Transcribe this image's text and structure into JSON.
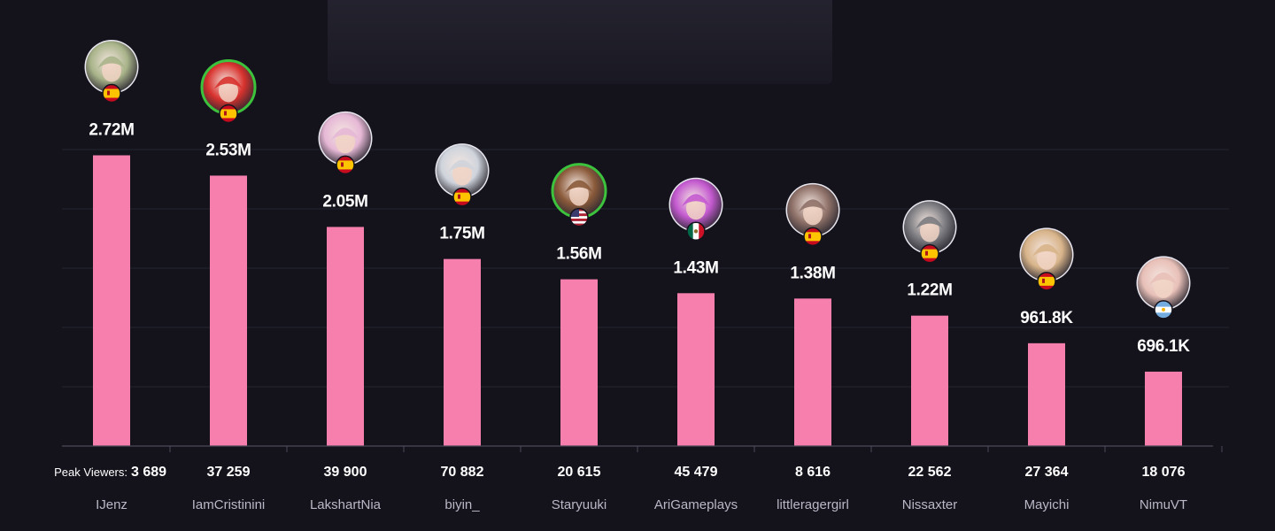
{
  "chart_data": {
    "type": "bar",
    "title": "",
    "xlabel": "",
    "ylabel": "",
    "ylim": [
      0,
      3000000
    ],
    "grid": true,
    "peak_prefix": "Peak Viewers:",
    "bar_color": "#f77fae",
    "categories": [
      "IJenz",
      "IamCristinini",
      "LakshartNia",
      "biyin_",
      "Staryuuki",
      "AriGameplays",
      "littleragergirl",
      "Nissaxter",
      "Mayichi",
      "NimuVT"
    ],
    "values": [
      2720000,
      2530000,
      2050000,
      1750000,
      1560000,
      1430000,
      1380000,
      1220000,
      961800,
      696100
    ],
    "value_labels": [
      "2.72M",
      "2.53M",
      "2.05M",
      "1.75M",
      "1.56M",
      "1.43M",
      "1.38M",
      "1.22M",
      "961.8K",
      "696.1K"
    ],
    "peak_viewers": [
      "3 689",
      "37 259",
      "39 900",
      "70 882",
      "20 615",
      "45 479",
      "8 616",
      "22 562",
      "27 364",
      "18 076"
    ],
    "flags": [
      "spain-flag-icon",
      "spain-flag-icon",
      "spain-flag-icon",
      "spain-flag-icon",
      "usa-flag-icon",
      "mexico-flag-icon",
      "spain-flag-icon",
      "spain-flag-icon",
      "spain-flag-icon",
      "argentina-flag-icon"
    ],
    "avatar_colors": [
      "#a9b48a",
      "#d8322e",
      "#e6b8d6",
      "#cfd4dc",
      "#8a5a3a",
      "#c45ad0",
      "#8e7168",
      "#7b7b80",
      "#d8b48a",
      "#e8c0b8"
    ],
    "avatar_ring": [
      "none",
      "#3cc23c",
      "none",
      "none",
      "#3cc23c",
      "none",
      "none",
      "none",
      "none",
      "none"
    ]
  }
}
